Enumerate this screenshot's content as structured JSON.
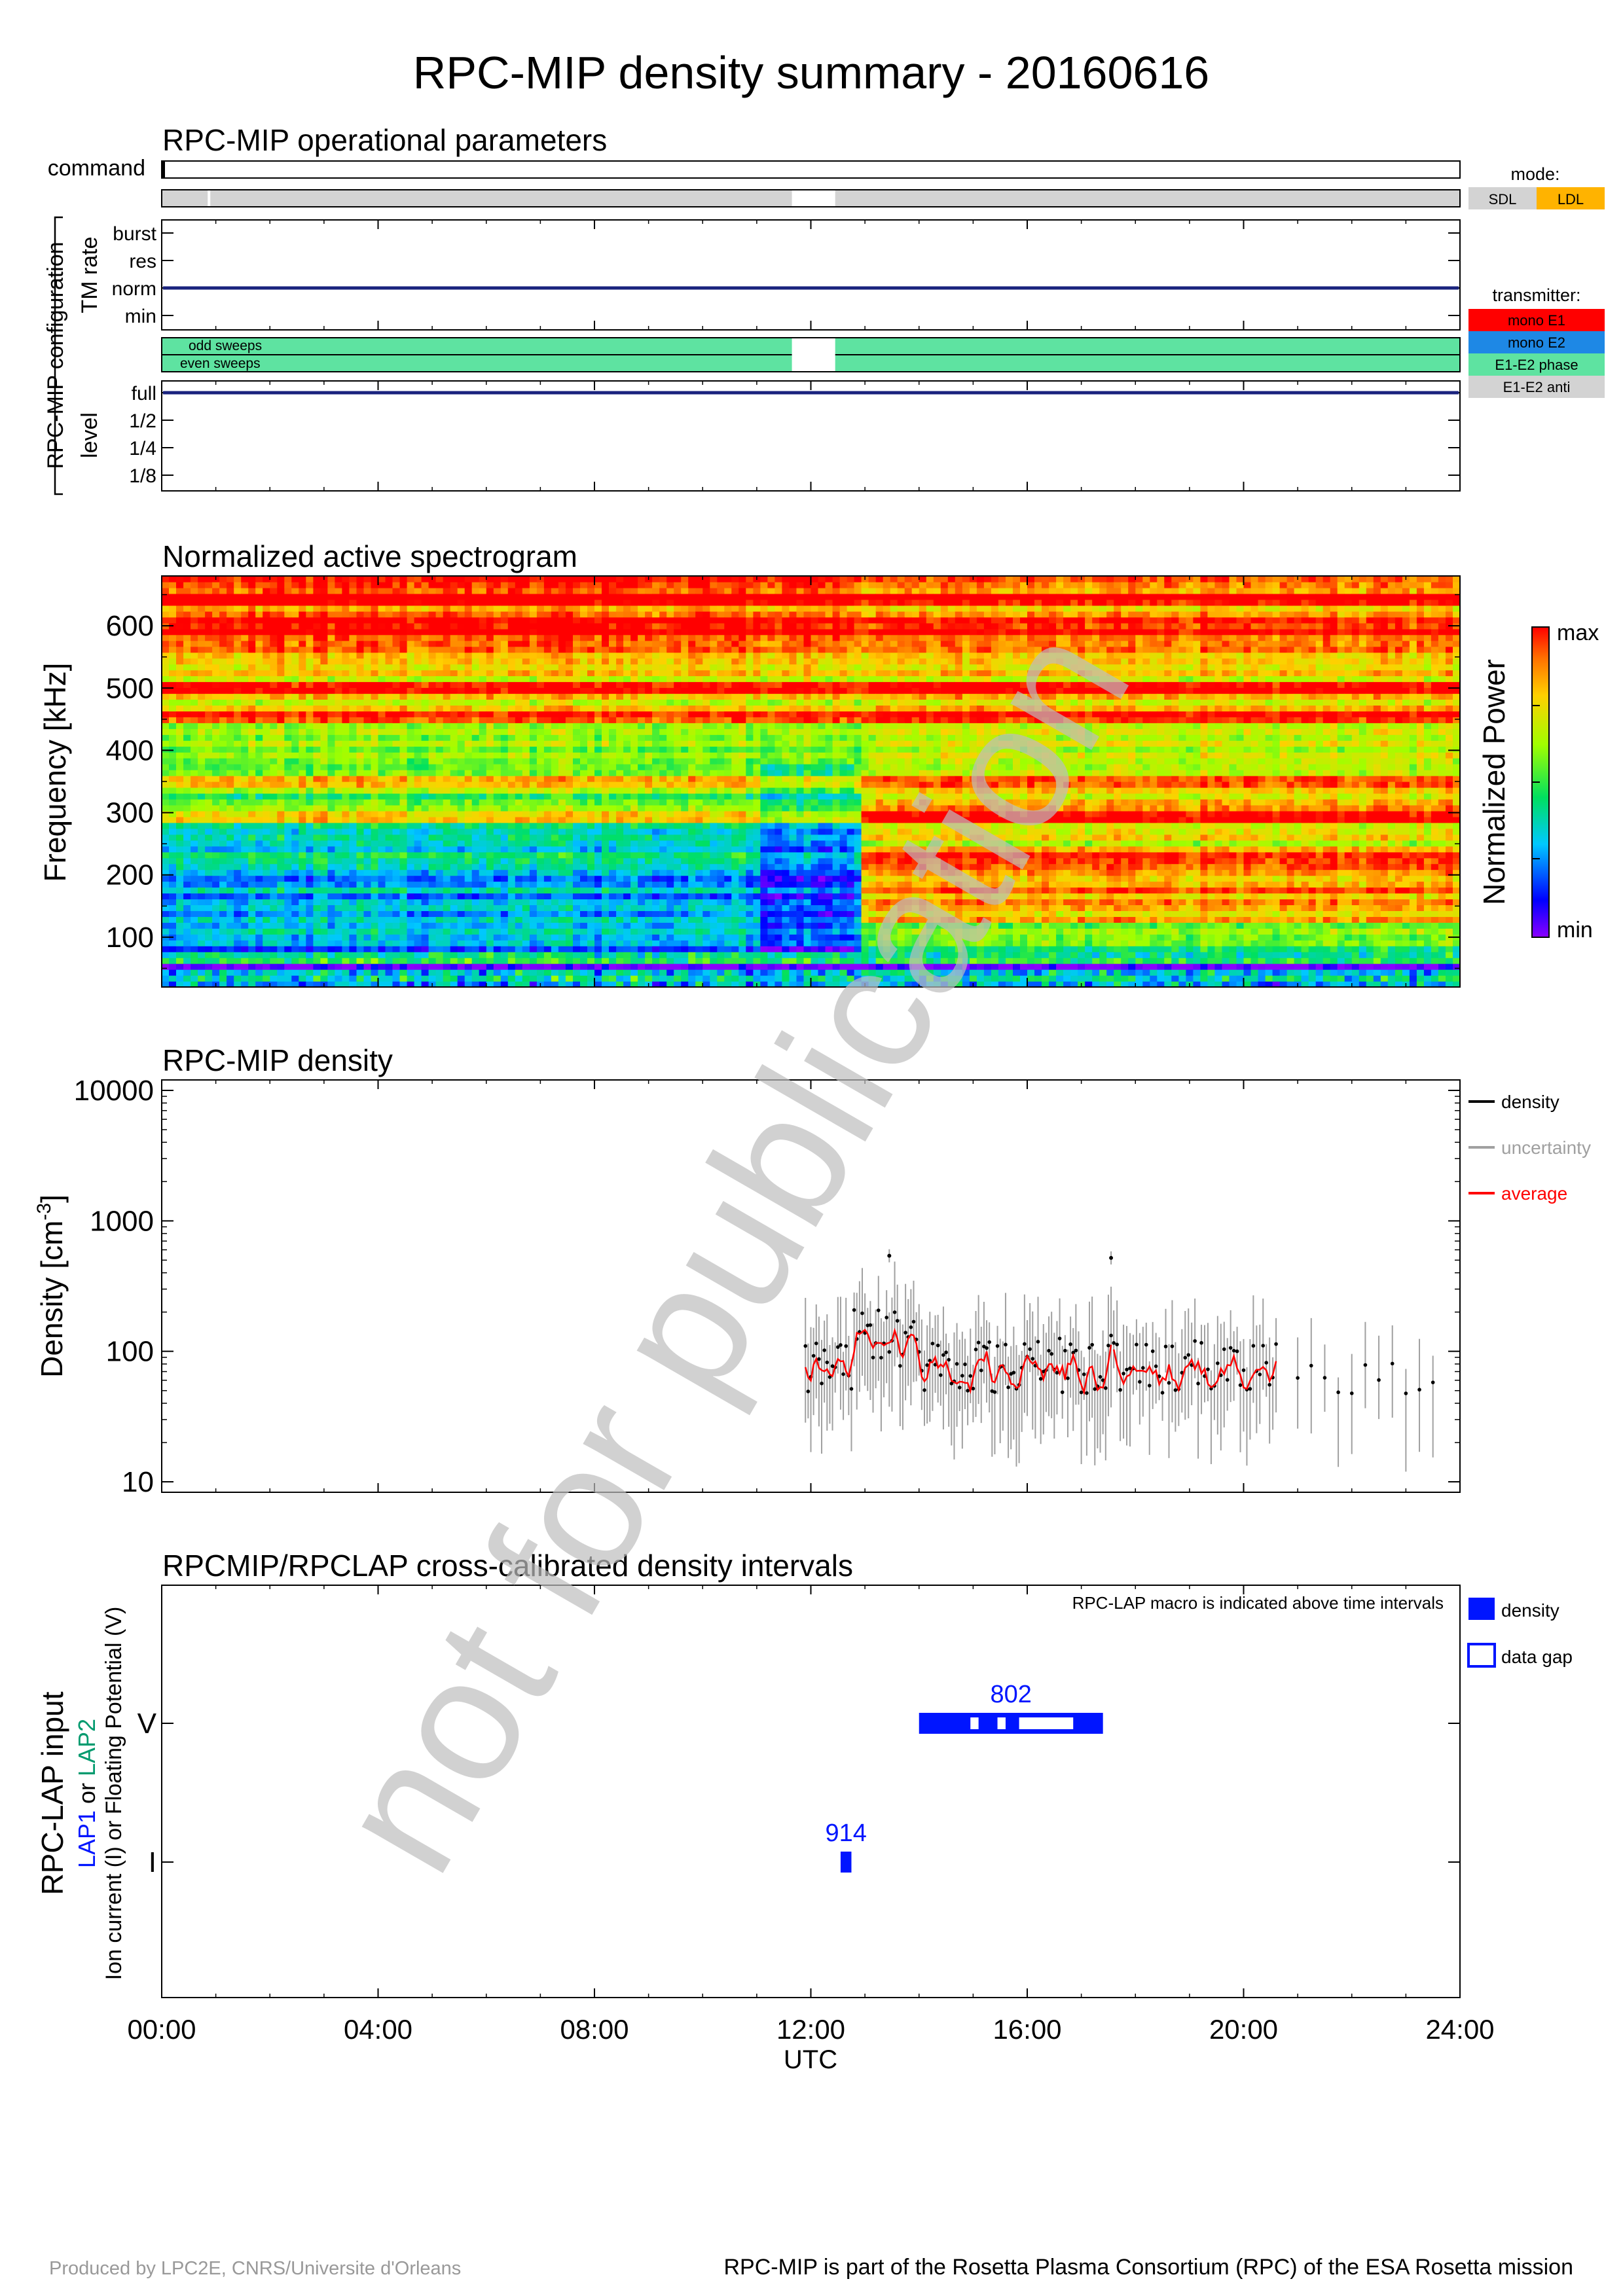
{
  "title": "RPC-MIP density summary - 20160616",
  "footer": {
    "left": "Produced by LPC2E, CNRS/Universite d'Orleans",
    "right": "RPC-MIP is part of the Rosetta Plasma Consortium (RPC) of the ESA Rosetta mission"
  },
  "watermark": "not for publication",
  "colors": {
    "navy": "#1a237e",
    "sdl": "#d3d3d3",
    "ldl": "#ffb300",
    "mono_e1": "#ff0000",
    "mono_e2": "#1e88e5",
    "e1e2_phase": "#5ee3a1",
    "e1e2_anti": "#d3d3d3",
    "lap_blue": "#0015ff",
    "lap2_green": "#009a6e",
    "average": "#ff0000",
    "uncertainty": "#a0a0a0"
  },
  "x_axis": {
    "tick_labels": [
      "00:00",
      "04:00",
      "08:00",
      "12:00",
      "16:00",
      "20:00",
      "24:00"
    ],
    "label": "UTC"
  },
  "ops": {
    "title": "RPC-MIP operational parameters",
    "command_label": "command",
    "config_label": "RPC-MIP configuration",
    "tm_rate_label": "TM rate",
    "tm_levels": [
      "burst",
      "res",
      "norm",
      "min"
    ],
    "tm_rate_value": "norm",
    "sweeps": [
      "odd sweeps",
      "even sweeps"
    ],
    "level_label": "level",
    "level_ticks": [
      "full",
      "1/2",
      "1/4",
      "1/8"
    ],
    "level_value": "full",
    "mode_gap_hours": [
      11.65,
      12.45
    ],
    "mode_blips_hours": [
      0.85
    ],
    "legend": {
      "mode_title": "mode:",
      "modes": [
        "SDL",
        "LDL"
      ],
      "transmitter_title": "transmitter:",
      "transmitters": [
        "mono E1",
        "mono E2",
        "E1-E2 phase",
        "E1-E2 anti"
      ]
    }
  },
  "spectrogram": {
    "title": "Normalized active spectrogram",
    "ylabel": "Frequency [kHz]",
    "yticks": [
      100,
      200,
      300,
      400,
      500,
      600
    ],
    "ylim": [
      20,
      680
    ],
    "colorbar_label": "Normalized Power",
    "colorbar_max": "max",
    "colorbar_min": "min"
  },
  "chart_data": [
    {
      "type": "scatter",
      "title": "RPC-MIP density",
      "ylabel_main": "Density [cm",
      "ylabel_sup": "-3",
      "ylabel_end": "]",
      "yscale": "log",
      "ylim": [
        10,
        10000
      ],
      "xlim_hours": [
        0,
        24
      ],
      "ytick_labels": [
        "10",
        "100",
        "1000",
        "10000"
      ],
      "legend": [
        "density",
        "uncertainty",
        "average"
      ],
      "legend_position": "right",
      "outliers": [
        {
          "x": 13.45,
          "y": 540
        },
        {
          "x": 17.55,
          "y": 520
        }
      ],
      "segments": [
        {
          "x_start": 11.9,
          "x_end": 17.6,
          "step": 0.05,
          "base": 80,
          "amp": 1.9
        },
        {
          "x_start": 17.6,
          "x_end": 20.6,
          "step": 0.06,
          "base": 75,
          "amp": 1.8
        },
        {
          "x_start": 21.0,
          "x_end": 23.6,
          "step": 0.25,
          "base": 65,
          "amp": 1.5
        }
      ]
    },
    {
      "type": "bar",
      "title": "RPCMIP/RPCLAP cross-calibrated density intervals",
      "note": "RPC-LAP macro is indicated above time intervals",
      "ylabel_1": "RPC-LAP input",
      "ylabel_2_a": "LAP1",
      "ylabel_2_b": " or ",
      "ylabel_2_c": "LAP2",
      "ylabel_3": "Ion current (I) or Floating Potential (V)",
      "yticks": [
        "V",
        "I"
      ],
      "legend": [
        "density",
        "data gap"
      ],
      "intervals": [
        {
          "row": "V",
          "start": 14.0,
          "end": 17.4,
          "macro": "802",
          "gaps": [
            [
              14.95,
              15.1
            ],
            [
              15.45,
              15.6
            ],
            [
              15.85,
              16.85
            ]
          ]
        },
        {
          "row": "I",
          "start": 12.55,
          "end": 12.75,
          "macro": "914",
          "gaps": []
        }
      ]
    }
  ]
}
